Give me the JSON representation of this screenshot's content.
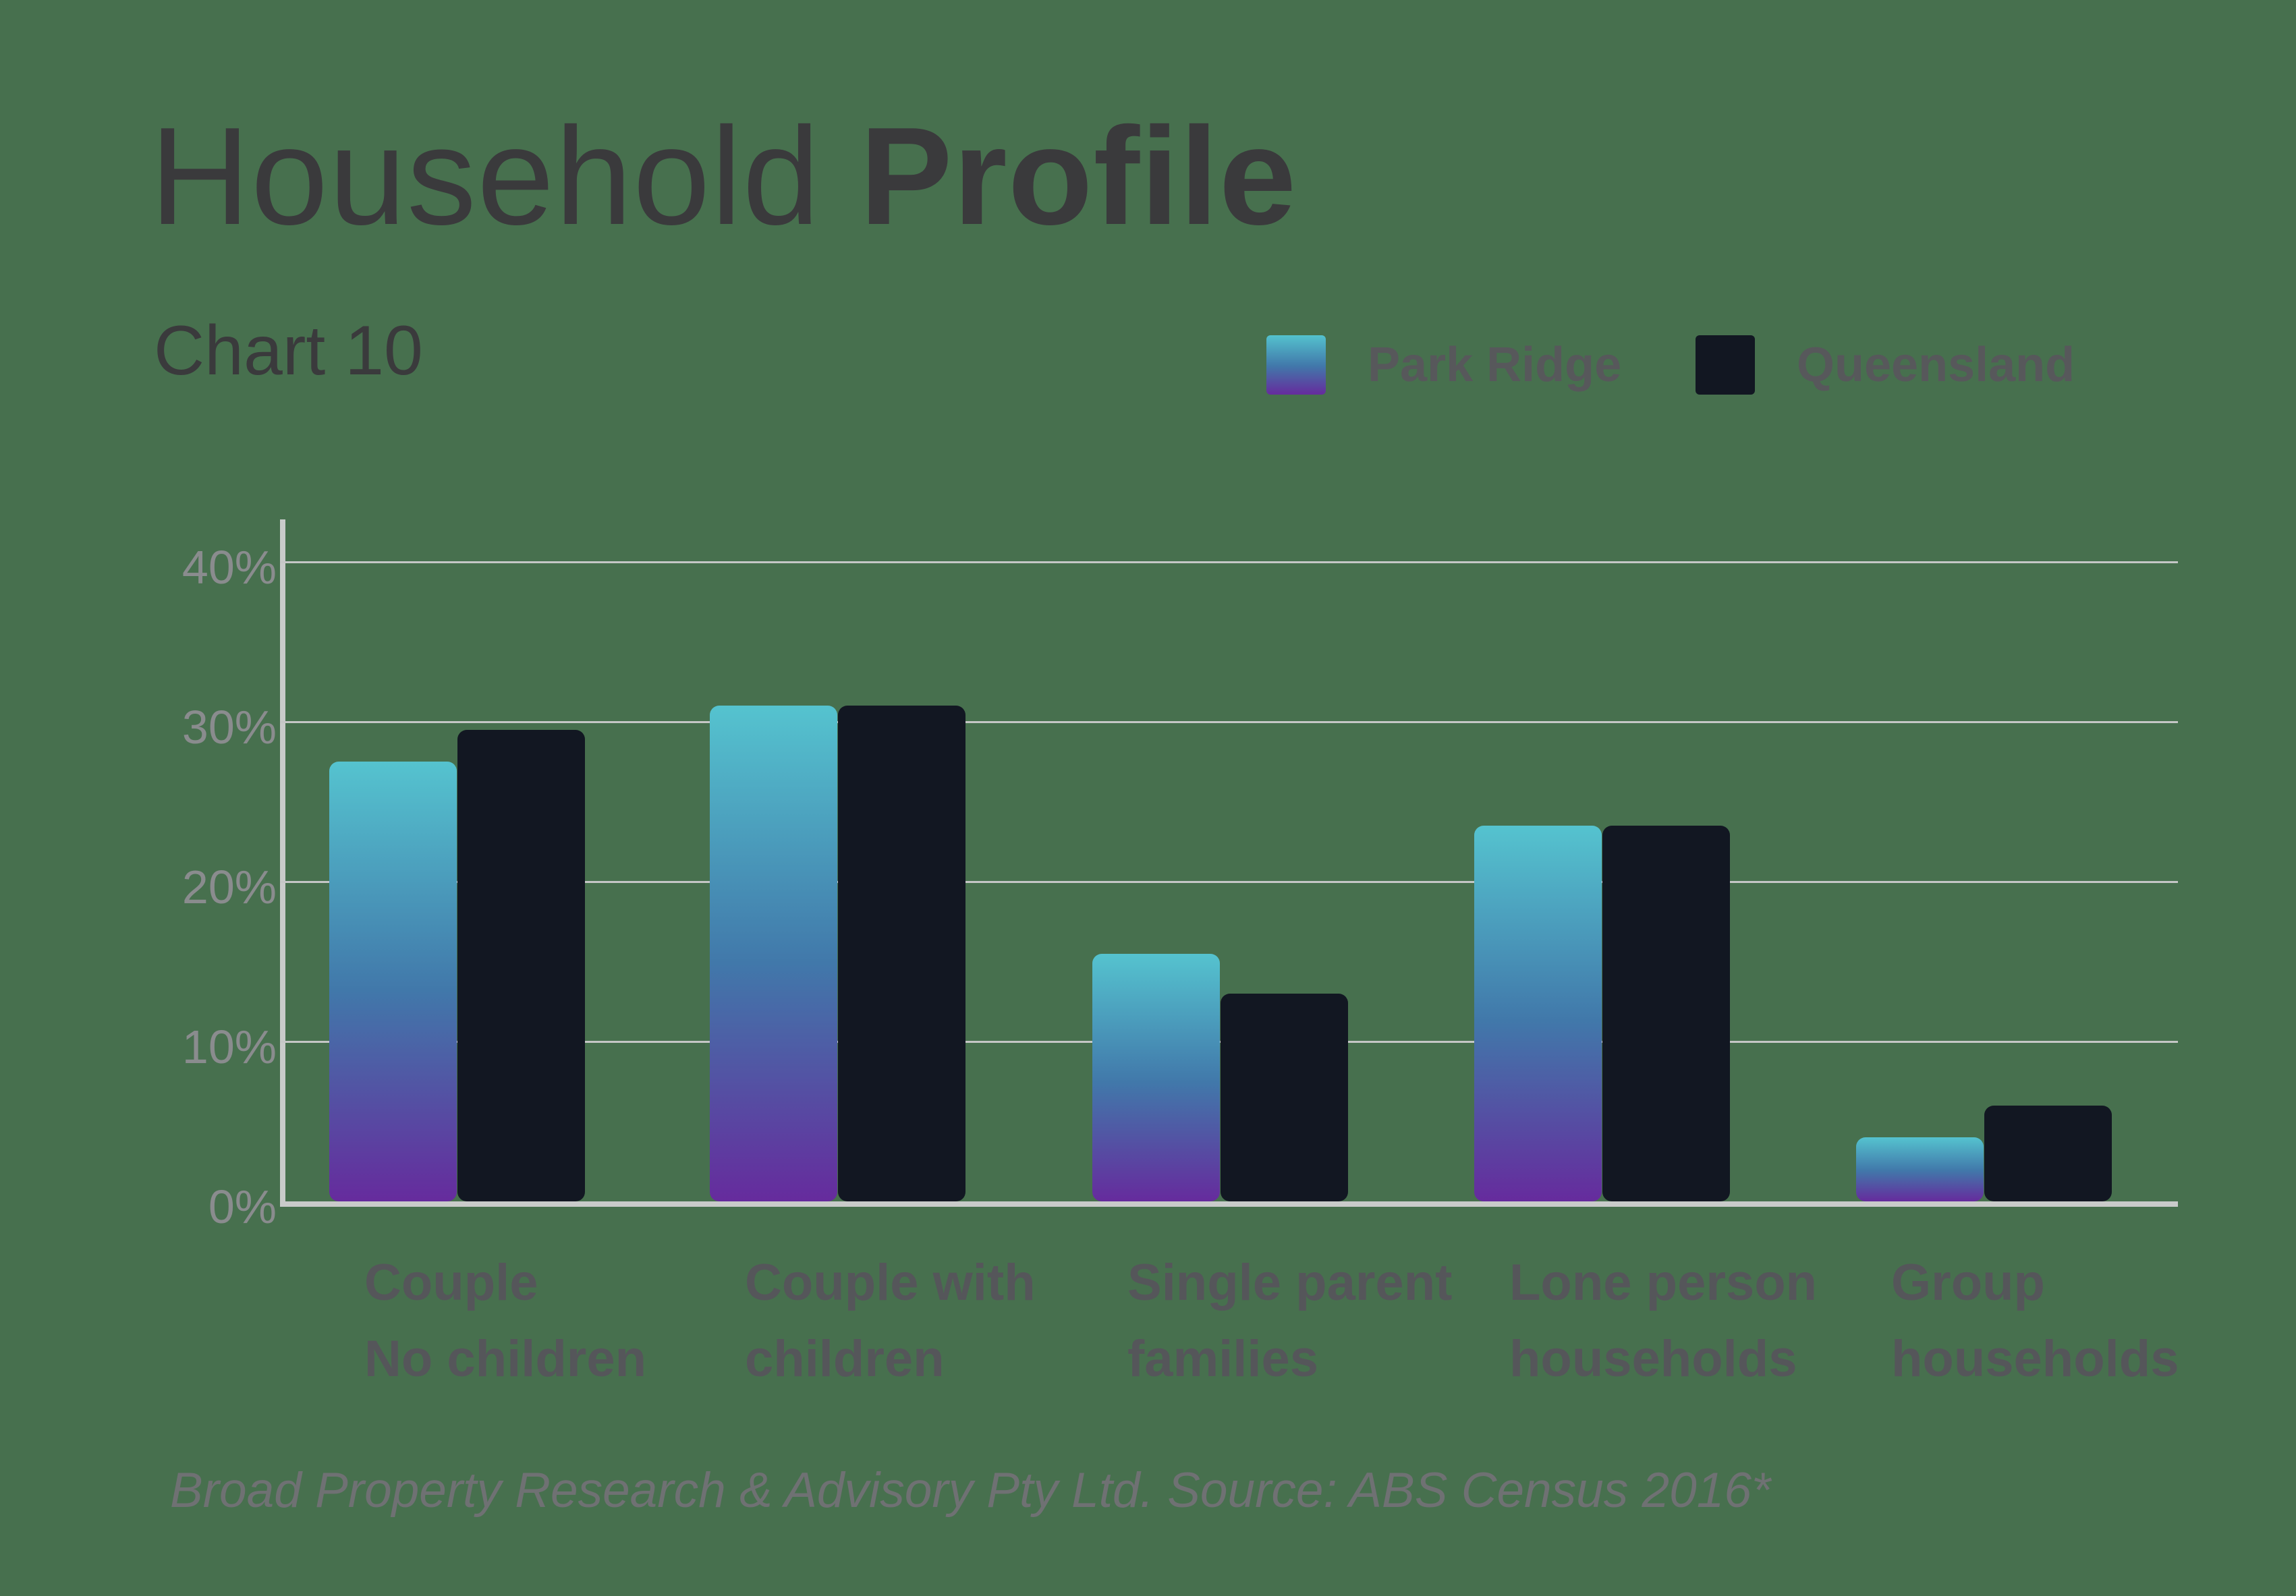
{
  "page": {
    "background": "#47704E"
  },
  "header": {
    "title_light": "Household ",
    "title_bold": "Profile",
    "subtitle": "Chart 10"
  },
  "legend": {
    "items": [
      {
        "label": "Park Ridge",
        "swatch": "gradient",
        "gradient_top": "#54C2CE",
        "gradient_mid": "#4178AA",
        "gradient_bottom": "#662B9D"
      },
      {
        "label": "Queensland",
        "swatch": "solid",
        "color": "#121722"
      }
    ]
  },
  "chart_data": {
    "type": "bar",
    "title": "Household Profile",
    "subtitle": "Chart 10",
    "categories": [
      "Couple No children",
      "Couple with children",
      "Single parent families",
      "Lone person households",
      "Group households"
    ],
    "category_lines": [
      [
        "Couple",
        "No children"
      ],
      [
        "Couple with",
        "children"
      ],
      [
        "Single parent",
        "families"
      ],
      [
        "Lone person",
        "households"
      ],
      [
        "Group",
        "households"
      ]
    ],
    "series": [
      {
        "name": "Park Ridge",
        "values": [
          27.5,
          31,
          15.5,
          23.5,
          4
        ]
      },
      {
        "name": "Queensland",
        "values": [
          29.5,
          31,
          13,
          23.5,
          6
        ]
      }
    ],
    "unit": "%",
    "y_ticks": [
      "40%",
      "30%",
      "20%",
      "10%",
      "0%"
    ],
    "y_tick_values": [
      40,
      30,
      20,
      10,
      0
    ],
    "ylim": [
      0,
      42.7
    ],
    "ylabel": "",
    "xlabel": "",
    "grid": true,
    "legend_position": "top-right",
    "colors": {
      "park_ridge_gradient": [
        "#54C2CE",
        "#4178AA",
        "#662B9D"
      ],
      "queensland": "#121722",
      "gridline": "#C5C7C6",
      "axis": "#C9CBCA"
    }
  },
  "footer": {
    "source": "Broad Property Research & Advisory Pty Ltd. Source: ABS Census 2016*"
  }
}
